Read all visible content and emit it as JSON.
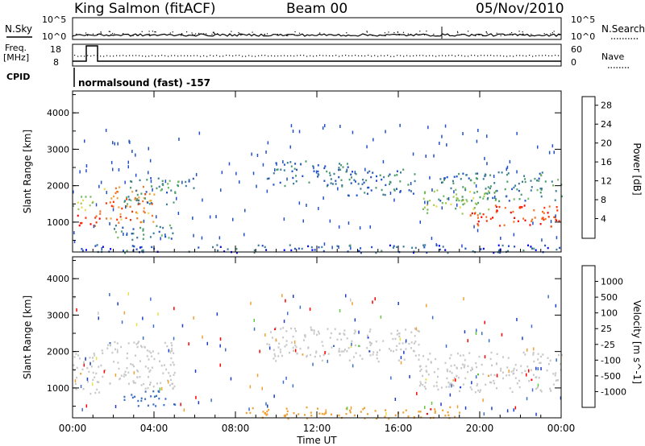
{
  "header": {
    "station": "King Salmon (fitACF)",
    "beam": "Beam 00",
    "date": "05/Nov/2010"
  },
  "params": {
    "nsky_label": "N.Sky",
    "nsearch_label": "N.Search",
    "freq_label_1": "Freq.",
    "freq_label_2": "[MHz]",
    "nave_label": "Nave",
    "cpid_label": "CPID",
    "cpid_text": "normalsound (fast) -157",
    "left_ticks_top": [
      "10^5",
      "10^0"
    ],
    "right_ticks_top": [
      "10^5",
      "10^0"
    ],
    "left_ticks_freq": [
      "18",
      "8"
    ],
    "right_ticks_freq": [
      "60",
      "0"
    ]
  },
  "chart_data": [
    {
      "type": "heatmap",
      "title": "",
      "xlabel": "Time UT",
      "ylabel": "Slant Range [km]",
      "xlim": [
        0,
        24
      ],
      "ylim": [
        180,
        4600
      ],
      "x_ticks": [
        "00:00",
        "04:00",
        "08:00",
        "12:00",
        "16:00",
        "20:00",
        "00:00"
      ],
      "y_ticks": [
        "1000",
        "2000",
        "3000",
        "4000"
      ],
      "colorbar": {
        "label": "Power [dB]",
        "ticks": [
          "4",
          "8",
          "12",
          "16",
          "20",
          "24",
          "28"
        ],
        "range": [
          0,
          30
        ],
        "colors": [
          "#0000ff",
          "#2050c8",
          "#3a7a9a",
          "#4a9a6a",
          "#70b860",
          "#a0c850",
          "#e8d84a",
          "#f0a030",
          "#f07020",
          "#ff3000",
          "#ff0000"
        ]
      },
      "series": [
        {
          "t": [
            0,
            1.3
          ],
          "range": [
            850,
            1250
          ],
          "value": 27
        },
        {
          "t": [
            0,
            1.0
          ],
          "range": [
            1300,
            1900
          ],
          "value": 15
        },
        {
          "t": [
            1.3,
            4.0
          ],
          "range": [
            1000,
            2000
          ],
          "value": 22
        },
        {
          "t": [
            2.5,
            5.2
          ],
          "range": [
            1500,
            2300
          ],
          "value": 9
        },
        {
          "t": [
            2.0,
            5.0
          ],
          "range": [
            500,
            950
          ],
          "value": 8
        },
        {
          "t": [
            5.5,
            6.0
          ],
          "range": [
            1950,
            2450
          ],
          "value": 7
        },
        {
          "t": [
            9.5,
            13.5
          ],
          "range": [
            2000,
            2700
          ],
          "value": 6
        },
        {
          "t": [
            13.5,
            17.0
          ],
          "range": [
            1750,
            2500
          ],
          "value": 7
        },
        {
          "t": [
            17.0,
            20.5
          ],
          "range": [
            1250,
            1900
          ],
          "value": 14
        },
        {
          "t": [
            19.5,
            24.0
          ],
          "range": [
            900,
            1500
          ],
          "value": 26
        },
        {
          "t": [
            18.0,
            24.0
          ],
          "range": [
            1600,
            2400
          ],
          "value": 8
        },
        {
          "t": [
            0,
            24
          ],
          "range": [
            180,
            400
          ],
          "value": 5
        }
      ]
    },
    {
      "type": "heatmap",
      "title": "",
      "xlabel": "Time UT",
      "ylabel": "Slant Range [km]",
      "xlim": [
        0,
        24
      ],
      "ylim": [
        180,
        4600
      ],
      "x_ticks": [
        "00:00",
        "04:00",
        "08:00",
        "12:00",
        "16:00",
        "20:00",
        "00:00"
      ],
      "y_ticks": [
        "1000",
        "2000",
        "3000",
        "4000"
      ],
      "colorbar": {
        "label": "Velocity [m s^-1]",
        "ticks": [
          "1000",
          "500",
          "100",
          "25",
          "-25",
          "-100",
          "-500",
          "-1000"
        ],
        "colors": [
          "#1e3cc8",
          "#3c6ec8",
          "#2e8b57",
          "#60c840",
          "#c8c8c8",
          "#e8e040",
          "#f0a030",
          "#f07020",
          "#ff0000"
        ]
      },
      "series": [
        {
          "t": [
            0,
            1.3
          ],
          "range": [
            800,
            2000
          ],
          "value": 0
        },
        {
          "t": [
            1.3,
            5.0
          ],
          "range": [
            1000,
            2300
          ],
          "value": 0
        },
        {
          "t": [
            2.5,
            5.0
          ],
          "range": [
            500,
            950
          ],
          "value": 150
        },
        {
          "t": [
            9.5,
            17.0
          ],
          "range": [
            1750,
            2700
          ],
          "value": 0
        },
        {
          "t": [
            17.0,
            24.0
          ],
          "range": [
            900,
            2000
          ],
          "value": 0
        },
        {
          "t": [
            8.5,
            19.0
          ],
          "range": [
            180,
            500
          ],
          "value": -200
        }
      ]
    }
  ]
}
